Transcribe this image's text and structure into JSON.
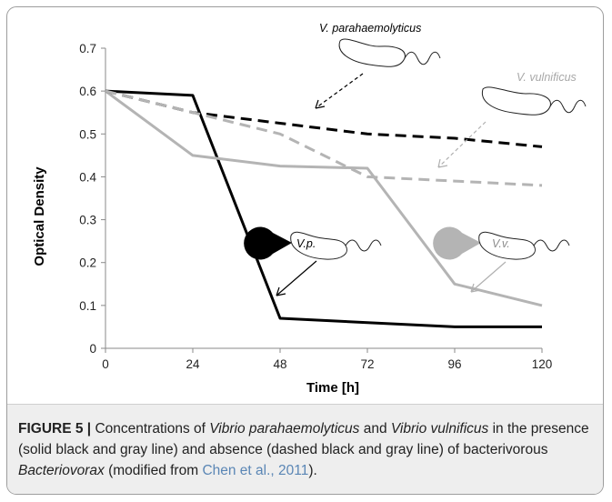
{
  "chart_data": {
    "type": "line",
    "xlabel": "Time [h]",
    "ylabel": "Optical Density",
    "x_ticks": [
      "0",
      "24",
      "48",
      "72",
      "96",
      "120"
    ],
    "y_ticks": [
      "0",
      "0.1",
      "0.2",
      "0.3",
      "0.4",
      "0.5",
      "0.6",
      "0.7"
    ],
    "xlim": [
      0,
      120
    ],
    "ylim": [
      0,
      0.7
    ],
    "grid": false,
    "series": [
      {
        "color": "#000000",
        "style": "solid",
        "x": [
          0,
          24,
          48,
          72,
          96,
          120
        ],
        "y": [
          0.6,
          0.59,
          0.07,
          0.06,
          0.05,
          0.05
        ]
      },
      {
        "color": "#b4b4b4",
        "style": "solid",
        "x": [
          0,
          24,
          48,
          72,
          96,
          120
        ],
        "y": [
          0.6,
          0.45,
          0.425,
          0.42,
          0.15,
          0.1
        ]
      },
      {
        "color": "#000000",
        "style": "dashed",
        "x": [
          0,
          24,
          48,
          72,
          96,
          120
        ],
        "y": [
          0.6,
          0.55,
          0.525,
          0.5,
          0.49,
          0.47
        ]
      },
      {
        "color": "#b4b4b4",
        "style": "dashed",
        "x": [
          0,
          24,
          48,
          72,
          96,
          120
        ],
        "y": [
          0.6,
          0.55,
          0.5,
          0.4,
          0.39,
          0.38
        ]
      }
    ],
    "annotations": [
      {
        "text": "V. parahaemolyticus",
        "color": "#000000"
      },
      {
        "text": "V. vulnificus",
        "color": "#a8a8a8"
      },
      {
        "text": "V.p.",
        "color": "#000000"
      },
      {
        "text": "V.v.",
        "color": "#8c8c8c"
      }
    ]
  },
  "caption": {
    "label": "FIGURE 5 |",
    "t1": " Concentrations of ",
    "sp1": "Vibrio parahaemolyticus",
    "t2": " and ",
    "sp2": "Vibrio vulnificus",
    "t3": " in the presence (solid black and gray line) and absence (dashed black and gray line) of bacterivorous ",
    "sp3": "Bacteriovorax",
    "t4": " (modified from ",
    "ref": "Chen et al., 2011",
    "t5": ")."
  },
  "colors": {
    "border": "#9d9d9d",
    "caption_background": "#eeeeee",
    "citation_link": "#5a86b5",
    "series_gray": "#b4b4b4"
  },
  "icons": [
    "bacterium-icon",
    "predator-icon",
    "arrow-icon"
  ]
}
